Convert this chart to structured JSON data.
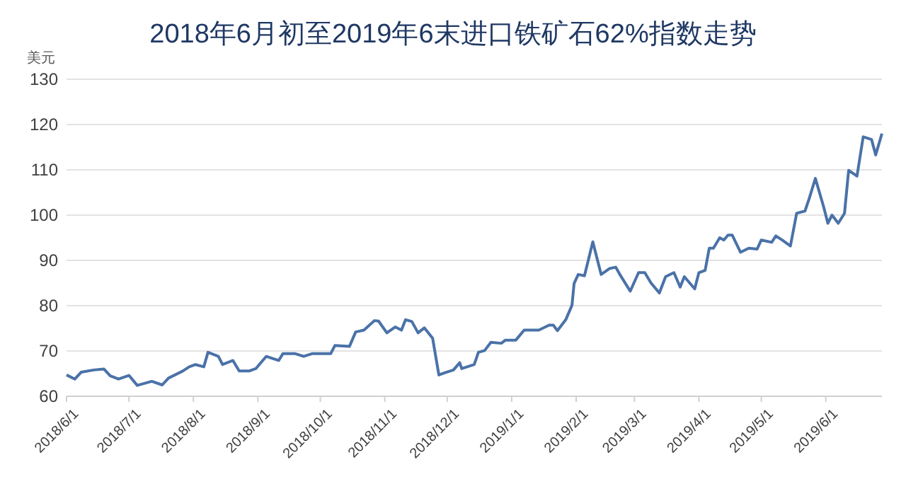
{
  "chart_data": {
    "type": "line",
    "title": "2018年6月初至2019年6末进口铁矿石62%指数走势",
    "ylabel": "美元",
    "xlim": [
      "2018-06-01",
      "2019-06-28"
    ],
    "xticks": [
      {
        "value": "2018-06-01",
        "label": "2018/6/1"
      },
      {
        "value": "2018-07-01",
        "label": "2018/7/1"
      },
      {
        "value": "2018-08-01",
        "label": "2018/8/1"
      },
      {
        "value": "2018-09-01",
        "label": "2018/9/1"
      },
      {
        "value": "2018-10-01",
        "label": "2018/10/1"
      },
      {
        "value": "2018-11-01",
        "label": "2018/11/1"
      },
      {
        "value": "2018-12-01",
        "label": "2018/12/1"
      },
      {
        "value": "2019-01-01",
        "label": "2019/1/1"
      },
      {
        "value": "2019-02-01",
        "label": "2019/2/1"
      },
      {
        "value": "2019-03-01",
        "label": "2019/3/1"
      },
      {
        "value": "2019-04-01",
        "label": "2019/4/1"
      },
      {
        "value": "2019-05-01",
        "label": "2019/5/1"
      },
      {
        "value": "2019-06-01",
        "label": "2019/6/1"
      }
    ],
    "ylim": [
      60,
      130
    ],
    "yticks": [
      60,
      70,
      80,
      90,
      100,
      110,
      120,
      130
    ],
    "grid": "y",
    "marker": "none",
    "line_style": "solid",
    "x": [
      "2018-06-01",
      "2018-06-05",
      "2018-06-08",
      "2018-06-14",
      "2018-06-19",
      "2018-06-22",
      "2018-06-26",
      "2018-07-01",
      "2018-07-05",
      "2018-07-12",
      "2018-07-17",
      "2018-07-20",
      "2018-07-27",
      "2018-07-30",
      "2018-08-02",
      "2018-08-06",
      "2018-08-08",
      "2018-08-13",
      "2018-08-15",
      "2018-08-20",
      "2018-08-23",
      "2018-08-28",
      "2018-08-31",
      "2018-09-05",
      "2018-09-11",
      "2018-09-13",
      "2018-09-19",
      "2018-09-23",
      "2018-09-27",
      "2018-10-06",
      "2018-10-08",
      "2018-10-15",
      "2018-10-18",
      "2018-10-22",
      "2018-10-27",
      "2018-10-29",
      "2018-11-02",
      "2018-11-06",
      "2018-11-09",
      "2018-11-11",
      "2018-11-14",
      "2018-11-17",
      "2018-11-20",
      "2018-11-24",
      "2018-11-27",
      "2018-11-30",
      "2018-12-04",
      "2018-12-07",
      "2018-12-08",
      "2018-12-14",
      "2018-12-16",
      "2018-12-19",
      "2018-12-22",
      "2018-12-27",
      "2018-12-29",
      "2019-01-03",
      "2019-01-07",
      "2019-01-14",
      "2019-01-19",
      "2019-01-21",
      "2019-01-23",
      "2019-01-27",
      "2019-01-30",
      "2019-01-31",
      "2019-02-02",
      "2019-02-05",
      "2019-02-09",
      "2019-02-13",
      "2019-02-17",
      "2019-02-20",
      "2019-02-22",
      "2019-02-27",
      "2019-03-03",
      "2019-03-06",
      "2019-03-09",
      "2019-03-13",
      "2019-03-16",
      "2019-03-20",
      "2019-03-23",
      "2019-03-25",
      "2019-03-30",
      "2019-04-01",
      "2019-04-04",
      "2019-04-06",
      "2019-04-08",
      "2019-04-11",
      "2019-04-13",
      "2019-04-15",
      "2019-04-17",
      "2019-04-21",
      "2019-04-25",
      "2019-04-29",
      "2019-05-01",
      "2019-05-06",
      "2019-05-08",
      "2019-05-11",
      "2019-05-15",
      "2019-05-18",
      "2019-05-22",
      "2019-05-24",
      "2019-05-27",
      "2019-05-31",
      "2019-06-02",
      "2019-06-04",
      "2019-06-07",
      "2019-06-10",
      "2019-06-12",
      "2019-06-16",
      "2019-06-19",
      "2019-06-23",
      "2019-06-25",
      "2019-06-28"
    ],
    "series": [
      {
        "color": "#4a72a8",
        "values": [
          64.7,
          63.8,
          65.3,
          65.8,
          66.0,
          64.5,
          63.8,
          64.6,
          62.4,
          63.3,
          62.5,
          64.0,
          65.6,
          66.5,
          67.0,
          66.5,
          69.7,
          68.8,
          67.0,
          67.9,
          65.6,
          65.6,
          66.1,
          68.8,
          67.9,
          69.4,
          69.4,
          68.8,
          69.4,
          69.4,
          71.2,
          71.0,
          74.2,
          74.6,
          76.7,
          76.6,
          74.0,
          75.3,
          74.6,
          76.9,
          76.5,
          74.0,
          75.1,
          72.8,
          64.7,
          65.2,
          65.8,
          67.4,
          66.1,
          67.0,
          69.7,
          70.1,
          71.9,
          71.7,
          72.4,
          72.4,
          74.6,
          74.6,
          75.7,
          75.7,
          74.5,
          76.9,
          80.1,
          84.9,
          86.9,
          86.6,
          94.1,
          86.9,
          88.2,
          88.5,
          86.9,
          83.2,
          87.3,
          87.3,
          85.0,
          82.8,
          86.4,
          87.3,
          84.1,
          86.4,
          83.7,
          87.3,
          87.8,
          92.7,
          92.7,
          95.0,
          94.5,
          95.6,
          95.6,
          91.8,
          92.7,
          92.5,
          94.5,
          94.0,
          95.4,
          94.5,
          93.2,
          100.4,
          100.9,
          103.6,
          108.1,
          101.8,
          98.2,
          100.0,
          98.2,
          100.4,
          109.9,
          108.6,
          117.3,
          116.7,
          113.3,
          118.0
        ]
      }
    ]
  }
}
